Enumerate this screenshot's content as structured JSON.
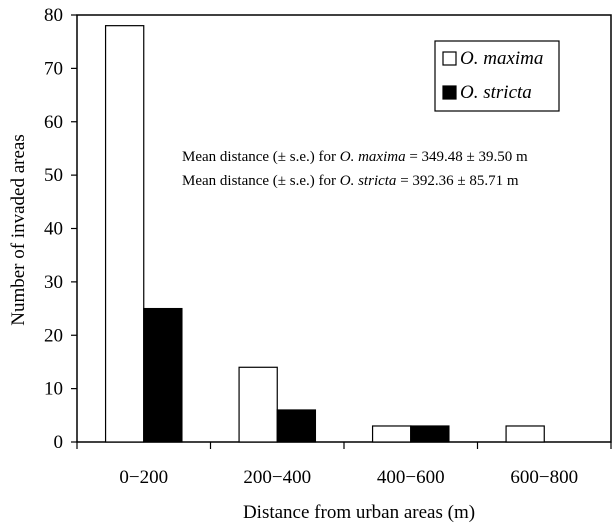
{
  "chart_data": {
    "type": "bar",
    "title": "",
    "xlabel": "Distance from urban areas (m)",
    "ylabel": "Number of invaded areas",
    "categories": [
      "0−200",
      "200−400",
      "400−600",
      "600−800"
    ],
    "series": [
      {
        "name": "O. maxima",
        "values": [
          78,
          14,
          3,
          3
        ],
        "color": "#ffffff"
      },
      {
        "name": "O. stricta",
        "values": [
          25,
          6,
          3,
          0
        ],
        "color": "#000000"
      }
    ],
    "ylim": [
      0,
      80
    ],
    "yticks": [
      "0",
      "10",
      "20",
      "30",
      "40",
      "50",
      "60",
      "70",
      "80"
    ],
    "grid": false,
    "legend_position": "top-right",
    "annotations": [
      {
        "prefix": "Mean distance (± s.e.) for ",
        "species": "O. maxima",
        "suffix": " = 349.48 ± 39.50 m"
      },
      {
        "prefix": "Mean distance (± s.e.) for ",
        "species": "O. stricta",
        "suffix": " = 392.36 ± 85.71 m"
      }
    ]
  }
}
